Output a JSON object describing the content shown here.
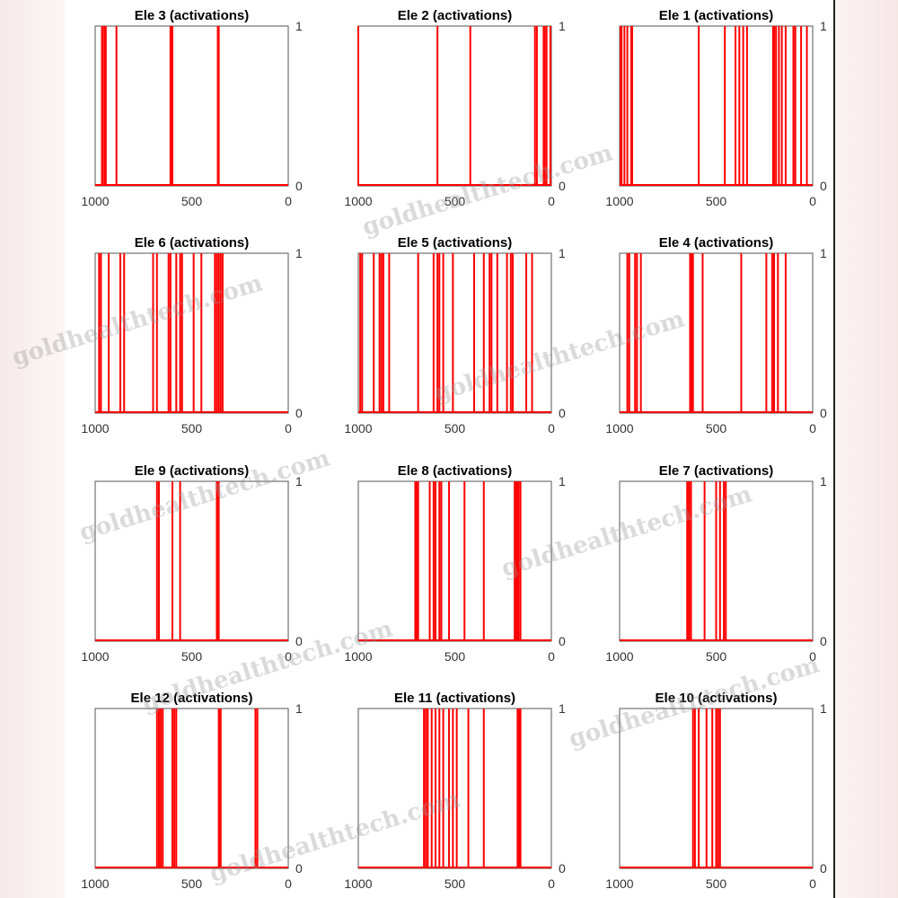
{
  "colors": {
    "activation": "#ff0000",
    "axis": "#555555",
    "text": "#000000"
  },
  "watermark": "goldhealthtech.com",
  "chart_data": [
    {
      "type": "bar",
      "title": "Ele 1 (activations)",
      "xlim": [
        0,
        1000
      ],
      "ylim": [
        0,
        1
      ],
      "x_reversed": true,
      "x_ticks": [
        0,
        500,
        1000
      ],
      "y_ticks": [
        0,
        1
      ],
      "activations": [
        30,
        60,
        90,
        100,
        140,
        160,
        175,
        190,
        200,
        205,
        340,
        360,
        380,
        400,
        455,
        590,
        935,
        940,
        960,
        975,
        990,
        995
      ]
    },
    {
      "type": "bar",
      "title": "Ele 2 (activations)",
      "xlim": [
        0,
        1000
      ],
      "ylim": [
        0,
        1
      ],
      "x_reversed": true,
      "x_ticks": [
        0,
        500,
        1000
      ],
      "y_ticks": [
        0,
        1
      ],
      "activations": [
        5,
        25,
        35,
        40,
        75,
        85,
        420,
        590,
        1000
      ]
    },
    {
      "type": "bar",
      "title": "Ele 3 (activations)",
      "xlim": [
        0,
        1000
      ],
      "ylim": [
        0,
        1
      ],
      "x_reversed": true,
      "x_ticks": [
        0,
        500,
        1000
      ],
      "y_ticks": [
        0,
        1
      ],
      "activations": [
        360,
        365,
        600,
        605,
        610,
        890,
        945,
        950,
        960,
        965
      ]
    },
    {
      "type": "bar",
      "title": "Ele 4 (activations)",
      "xlim": [
        0,
        1000
      ],
      "ylim": [
        0,
        1
      ],
      "x_reversed": true,
      "x_ticks": [
        0,
        500,
        1000
      ],
      "y_ticks": [
        0,
        1
      ],
      "activations": [
        140,
        180,
        200,
        210,
        240,
        370,
        570,
        620,
        625,
        630,
        635,
        890,
        910,
        920,
        950,
        960
      ]
    },
    {
      "type": "bar",
      "title": "Ele 5 (activations)",
      "xlim": [
        0,
        1000
      ],
      "ylim": [
        0,
        1
      ],
      "x_reversed": true,
      "x_ticks": [
        0,
        500,
        1000
      ],
      "y_ticks": [
        0,
        1
      ],
      "activations": [
        100,
        130,
        200,
        210,
        230,
        280,
        310,
        320,
        350,
        400,
        510,
        560,
        580,
        590,
        610,
        690,
        840,
        870,
        880,
        890,
        920,
        980,
        990
      ]
    },
    {
      "type": "bar",
      "title": "Ele 6 (activations)",
      "xlim": [
        0,
        1000
      ],
      "ylim": [
        0,
        1
      ],
      "x_reversed": true,
      "x_ticks": [
        0,
        500,
        1000
      ],
      "y_ticks": [
        0,
        1
      ],
      "activations": [
        340,
        350,
        360,
        370,
        380,
        450,
        490,
        550,
        560,
        580,
        610,
        620,
        680,
        700,
        850,
        870,
        930,
        970,
        980
      ]
    },
    {
      "type": "bar",
      "title": "Ele 7 (activations)",
      "xlim": [
        0,
        1000
      ],
      "ylim": [
        0,
        1
      ],
      "x_reversed": true,
      "x_ticks": [
        0,
        500,
        1000
      ],
      "y_ticks": [
        0,
        1
      ],
      "activations": [
        450,
        460,
        480,
        500,
        560,
        630,
        640,
        645,
        650
      ]
    },
    {
      "type": "bar",
      "title": "Ele 8 (activations)",
      "xlim": [
        0,
        1000
      ],
      "ylim": [
        0,
        1
      ],
      "x_reversed": true,
      "x_ticks": [
        0,
        500,
        1000
      ],
      "y_ticks": [
        0,
        1
      ],
      "activations": [
        160,
        170,
        175,
        180,
        185,
        190,
        350,
        450,
        530,
        570,
        580,
        600,
        610,
        630,
        690,
        695,
        700,
        705
      ]
    },
    {
      "type": "bar",
      "title": "Ele 9 (activations)",
      "xlim": [
        0,
        1000
      ],
      "ylim": [
        0,
        1
      ],
      "x_reversed": true,
      "x_ticks": [
        0,
        500,
        1000
      ],
      "y_ticks": [
        0,
        1
      ],
      "activations": [
        360,
        365,
        370,
        560,
        600,
        670,
        680
      ]
    },
    {
      "type": "bar",
      "title": "Ele 10 (activations)",
      "xlim": [
        0,
        1000
      ],
      "ylim": [
        0,
        1
      ],
      "x_reversed": true,
      "x_ticks": [
        0,
        500,
        1000
      ],
      "y_ticks": [
        0,
        1
      ],
      "activations": [
        480,
        490,
        500,
        520,
        550,
        590,
        610,
        620
      ]
    },
    {
      "type": "bar",
      "title": "Ele 11 (activations)",
      "xlim": [
        0,
        1000
      ],
      "ylim": [
        0,
        1
      ],
      "x_reversed": true,
      "x_ticks": [
        0,
        500,
        1000
      ],
      "y_ticks": [
        0,
        1
      ],
      "activations": [
        160,
        165,
        170,
        175,
        350,
        430,
        490,
        510,
        530,
        560,
        580,
        600,
        620,
        640,
        650,
        660
      ]
    },
    {
      "type": "bar",
      "title": "Ele 12 (activations)",
      "xlim": [
        0,
        1000
      ],
      "ylim": [
        0,
        1
      ],
      "x_reversed": true,
      "x_ticks": [
        0,
        500,
        1000
      ],
      "y_ticks": [
        0,
        1
      ],
      "activations": [
        160,
        170,
        350,
        355,
        360,
        580,
        590,
        600,
        650,
        660,
        670,
        680
      ]
    }
  ]
}
